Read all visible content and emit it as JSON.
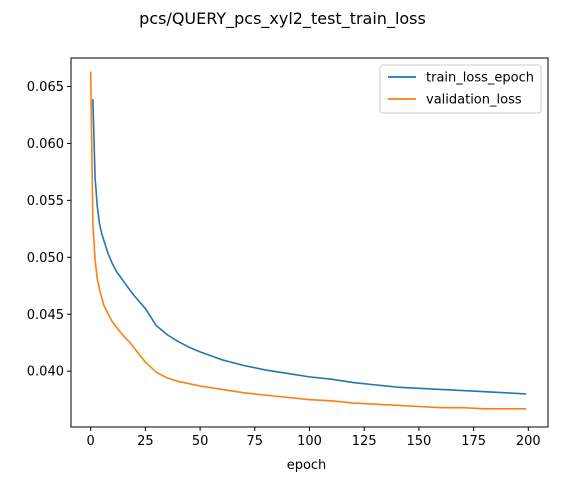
{
  "chart_data": {
    "type": "line",
    "title": "pcs/QUERY_pcs_xyl2_test_train_loss",
    "xlabel": "epoch",
    "ylabel": "",
    "xlim": [
      -9,
      209
    ],
    "ylim": [
      0.0351,
      0.0675
    ],
    "xticks": [
      0,
      25,
      50,
      75,
      100,
      125,
      150,
      175,
      200
    ],
    "yticks": [
      0.04,
      0.045,
      0.05,
      0.055,
      0.06,
      0.065
    ],
    "ytick_labels": [
      "0.040",
      "0.045",
      "0.050",
      "0.055",
      "0.060",
      "0.065"
    ],
    "grid": false,
    "legend_position": "top-right",
    "series": [
      {
        "name": "train_loss_epoch",
        "color": "#1f77b4",
        "x": [
          1,
          2,
          3,
          4,
          5,
          6,
          8,
          10,
          12,
          15,
          18,
          20,
          25,
          30,
          35,
          40,
          45,
          50,
          60,
          70,
          80,
          90,
          100,
          110,
          120,
          130,
          140,
          150,
          160,
          170,
          180,
          190,
          199
        ],
        "y": [
          0.0639,
          0.057,
          0.0545,
          0.053,
          0.0521,
          0.0515,
          0.0503,
          0.0494,
          0.0487,
          0.0479,
          0.0471,
          0.0466,
          0.0455,
          0.044,
          0.0432,
          0.0426,
          0.0421,
          0.0417,
          0.041,
          0.0405,
          0.0401,
          0.0398,
          0.0395,
          0.0393,
          0.039,
          0.0388,
          0.0386,
          0.0385,
          0.0384,
          0.0383,
          0.0382,
          0.0381,
          0.038
        ]
      },
      {
        "name": "validation_loss",
        "color": "#ff7f0e",
        "x": [
          0,
          1,
          2,
          3,
          4,
          5,
          6,
          8,
          10,
          12,
          15,
          18,
          20,
          25,
          30,
          35,
          40,
          45,
          50,
          60,
          70,
          80,
          90,
          100,
          110,
          120,
          130,
          140,
          150,
          160,
          170,
          180,
          190,
          199
        ],
        "y": [
          0.0663,
          0.053,
          0.0498,
          0.0481,
          0.0472,
          0.0465,
          0.0458,
          0.045,
          0.0443,
          0.0438,
          0.0431,
          0.0425,
          0.042,
          0.0408,
          0.0399,
          0.0394,
          0.0391,
          0.0389,
          0.0387,
          0.0384,
          0.0381,
          0.0379,
          0.0377,
          0.0375,
          0.0374,
          0.0372,
          0.0371,
          0.037,
          0.0369,
          0.0368,
          0.0368,
          0.0367,
          0.0367,
          0.0367
        ]
      }
    ]
  }
}
